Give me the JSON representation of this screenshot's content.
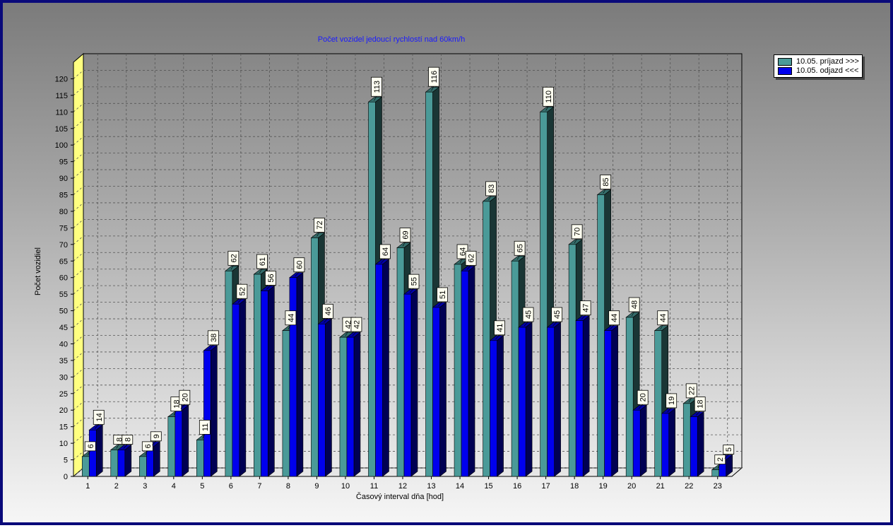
{
  "chart_data": {
    "type": "bar",
    "title": "Počet vozidel jedoucí rychlostí nad 60km/h",
    "xlabel": "Časový interval dňa [hod]",
    "ylabel": "Počet vozidiel",
    "ylim": [
      0,
      125
    ],
    "yticks": [
      0,
      5,
      10,
      15,
      20,
      25,
      30,
      35,
      40,
      45,
      50,
      55,
      60,
      65,
      70,
      75,
      80,
      85,
      90,
      95,
      100,
      105,
      110,
      115,
      120
    ],
    "grid": true,
    "legend_position": "top-right",
    "categories": [
      "1",
      "2",
      "3",
      "4",
      "5",
      "6",
      "7",
      "8",
      "9",
      "10",
      "11",
      "12",
      "13",
      "14",
      "15",
      "16",
      "17",
      "18",
      "19",
      "20",
      "21",
      "22",
      "23"
    ],
    "series": [
      {
        "name": "10.05.  príjazd >>>",
        "color": "#4a9a98",
        "values": [
          6,
          8,
          6,
          18,
          11,
          62,
          61,
          44,
          72,
          42,
          113,
          69,
          116,
          64,
          83,
          65,
          110,
          70,
          85,
          48,
          44,
          22,
          2
        ]
      },
      {
        "name": "10.05.  odjazd <<<",
        "color": "#0000ee",
        "values": [
          14,
          8,
          9,
          20,
          38,
          52,
          56,
          60,
          46,
          42,
          64,
          55,
          51,
          62,
          41,
          45,
          45,
          47,
          44,
          20,
          19,
          18,
          5
        ]
      }
    ]
  }
}
